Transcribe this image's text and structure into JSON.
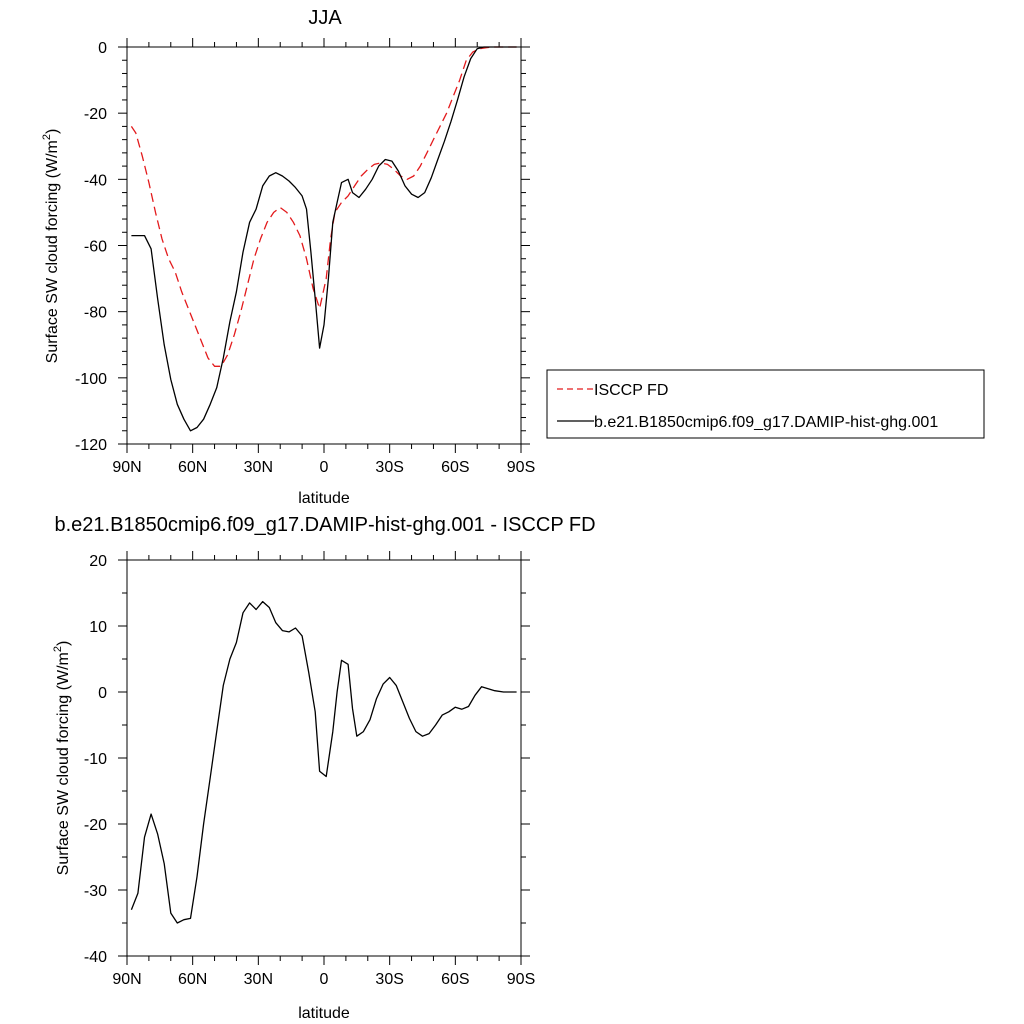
{
  "chart_data": [
    {
      "type": "line",
      "title": "JJA",
      "xlabel": "latitude",
      "ylabel": "Surface SW cloud forcing (W/m",
      "ylabel_sup": "2",
      "ylabel_close": ")",
      "xlim": [
        90,
        -90
      ],
      "ylim": [
        -120,
        0
      ],
      "x_ticks": [
        {
          "value": 90,
          "label": "90N"
        },
        {
          "value": 60,
          "label": "60N"
        },
        {
          "value": 30,
          "label": "30N"
        },
        {
          "value": 0,
          "label": "0"
        },
        {
          "value": -30,
          "label": "30S"
        },
        {
          "value": -60,
          "label": "60S"
        },
        {
          "value": -90,
          "label": "90S"
        }
      ],
      "y_ticks": [
        {
          "value": 0,
          "label": "0"
        },
        {
          "value": -20,
          "label": "-20"
        },
        {
          "value": -40,
          "label": "-40"
        },
        {
          "value": -60,
          "label": "-60"
        },
        {
          "value": -80,
          "label": "-80"
        },
        {
          "value": -100,
          "label": "-100"
        },
        {
          "value": -120,
          "label": "-120"
        }
      ],
      "series": [
        {
          "name": "ISCCP FD",
          "color": "#e31a1c",
          "dash": "dashed",
          "points": [
            [
              88,
              -24
            ],
            [
              86,
              -26
            ],
            [
              83,
              -33
            ],
            [
              80,
              -41
            ],
            [
              77,
              -50
            ],
            [
              74,
              -58
            ],
            [
              71,
              -64
            ],
            [
              68,
              -68
            ],
            [
              65,
              -74
            ],
            [
              62,
              -79
            ],
            [
              59,
              -84
            ],
            [
              56,
              -89
            ],
            [
              53,
              -94
            ],
            [
              50,
              -96.5
            ],
            [
              47,
              -96.5
            ],
            [
              44,
              -93
            ],
            [
              41,
              -87
            ],
            [
              38,
              -80
            ],
            [
              35,
              -72
            ],
            [
              32,
              -64
            ],
            [
              29,
              -58
            ],
            [
              26,
              -53
            ],
            [
              23,
              -50
            ],
            [
              20,
              -48.5
            ],
            [
              17,
              -50
            ],
            [
              14,
              -53
            ],
            [
              11,
              -57
            ],
            [
              8,
              -64
            ],
            [
              5,
              -73
            ],
            [
              2,
              -79
            ],
            [
              -1,
              -70
            ],
            [
              -3,
              -58
            ],
            [
              -5,
              -50
            ],
            [
              -8,
              -47
            ],
            [
              -11,
              -45
            ],
            [
              -14,
              -42
            ],
            [
              -17,
              -39
            ],
            [
              -20,
              -37
            ],
            [
              -23,
              -35.5
            ],
            [
              -26,
              -35
            ],
            [
              -29,
              -35.5
            ],
            [
              -32,
              -37
            ],
            [
              -35,
              -39
            ],
            [
              -38,
              -40
            ],
            [
              -41,
              -39
            ],
            [
              -44,
              -36
            ],
            [
              -47,
              -32
            ],
            [
              -50,
              -28
            ],
            [
              -53,
              -24
            ],
            [
              -56,
              -20
            ],
            [
              -59,
              -15
            ],
            [
              -62,
              -10
            ],
            [
              -65,
              -4
            ],
            [
              -68,
              -1.5
            ],
            [
              -71,
              -0.5
            ],
            [
              -74,
              -0.2
            ],
            [
              -77,
              0
            ],
            [
              -80,
              0
            ],
            [
              -85,
              0
            ],
            [
              -88,
              0
            ]
          ]
        },
        {
          "name": "b.e21.B1850cmip6.f09_g17.DAMIP-hist-ghg.001",
          "color": "#000000",
          "dash": "solid",
          "points": [
            [
              88,
              -57
            ],
            [
              85,
              -57
            ],
            [
              82,
              -57
            ],
            [
              79,
              -61
            ],
            [
              76,
              -76
            ],
            [
              73,
              -90
            ],
            [
              70,
              -100.5
            ],
            [
              67,
              -108
            ],
            [
              64,
              -112.5
            ],
            [
              61,
              -116
            ],
            [
              58,
              -115
            ],
            [
              55,
              -112.5
            ],
            [
              52,
              -108
            ],
            [
              49,
              -103
            ],
            [
              46,
              -94
            ],
            [
              43,
              -83
            ],
            [
              40,
              -74
            ],
            [
              37,
              -62
            ],
            [
              34,
              -53
            ],
            [
              31,
              -49
            ],
            [
              28,
              -42
            ],
            [
              25,
              -39
            ],
            [
              22,
              -38
            ],
            [
              19,
              -39
            ],
            [
              16,
              -40.5
            ],
            [
              13,
              -42.5
            ],
            [
              10,
              -45
            ],
            [
              8,
              -49
            ],
            [
              6,
              -62
            ],
            [
              4,
              -76
            ],
            [
              2,
              -91
            ],
            [
              0,
              -84
            ],
            [
              -2,
              -70
            ],
            [
              -4,
              -53
            ],
            [
              -6,
              -47
            ],
            [
              -8,
              -41
            ],
            [
              -11,
              -40
            ],
            [
              -13,
              -44
            ],
            [
              -16,
              -45.5
            ],
            [
              -19,
              -43
            ],
            [
              -22,
              -40
            ],
            [
              -25,
              -36
            ],
            [
              -28,
              -34
            ],
            [
              -31,
              -34.5
            ],
            [
              -34,
              -37.5
            ],
            [
              -37,
              -42
            ],
            [
              -40,
              -44.5
            ],
            [
              -43,
              -45.5
            ],
            [
              -46,
              -44
            ],
            [
              -49,
              -39.5
            ],
            [
              -52,
              -34
            ],
            [
              -55,
              -28.5
            ],
            [
              -58,
              -22.5
            ],
            [
              -61,
              -16
            ],
            [
              -64,
              -9
            ],
            [
              -67,
              -3.5
            ],
            [
              -70,
              -0.5
            ],
            [
              -73,
              0
            ],
            [
              -76,
              0
            ],
            [
              -80,
              0
            ],
            [
              -85,
              0
            ],
            [
              -88,
              0
            ]
          ]
        }
      ],
      "legend": [
        "ISCCP FD",
        "b.e21.B1850cmip6.f09_g17.DAMIP-hist-ghg.001"
      ],
      "legend_position": "right"
    },
    {
      "type": "line",
      "title": "b.e21.B1850cmip6.f09_g17.DAMIP-hist-ghg.001 - ISCCP FD",
      "xlabel": "latitude",
      "ylabel": "Surface SW cloud forcing (W/m",
      "ylabel_sup": "2",
      "ylabel_close": ")",
      "xlim": [
        90,
        -90
      ],
      "ylim": [
        -40,
        20
      ],
      "x_ticks": [
        {
          "value": 90,
          "label": "90N"
        },
        {
          "value": 60,
          "label": "60N"
        },
        {
          "value": 30,
          "label": "30N"
        },
        {
          "value": 0,
          "label": "0"
        },
        {
          "value": -30,
          "label": "30S"
        },
        {
          "value": -60,
          "label": "60S"
        },
        {
          "value": -90,
          "label": "90S"
        }
      ],
      "y_ticks": [
        {
          "value": 20,
          "label": "20"
        },
        {
          "value": 10,
          "label": "10"
        },
        {
          "value": 0,
          "label": "0"
        },
        {
          "value": -10,
          "label": "-10"
        },
        {
          "value": -20,
          "label": "-20"
        },
        {
          "value": -30,
          "label": "-30"
        },
        {
          "value": -40,
          "label": "-40"
        }
      ],
      "series": [
        {
          "color": "#000000",
          "dash": "solid",
          "points": [
            [
              88,
              -33
            ],
            [
              85,
              -30.5
            ],
            [
              82,
              -22
            ],
            [
              79,
              -18.5
            ],
            [
              76,
              -21.5
            ],
            [
              73,
              -26
            ],
            [
              70,
              -33.5
            ],
            [
              67,
              -35
            ],
            [
              64,
              -34.5
            ],
            [
              61,
              -34.3
            ],
            [
              58,
              -28
            ],
            [
              55,
              -20
            ],
            [
              52,
              -13
            ],
            [
              49,
              -6
            ],
            [
              46,
              1
            ],
            [
              43,
              5
            ],
            [
              40,
              7.5
            ],
            [
              37,
              12
            ],
            [
              34,
              13.5
            ],
            [
              31,
              12.5
            ],
            [
              28,
              13.7
            ],
            [
              25,
              12.8
            ],
            [
              22,
              10.5
            ],
            [
              19,
              9.3
            ],
            [
              16,
              9.1
            ],
            [
              13,
              9.7
            ],
            [
              10,
              8.5
            ],
            [
              7,
              3
            ],
            [
              4,
              -3
            ],
            [
              2,
              -12
            ],
            [
              -1,
              -12.8
            ],
            [
              -4,
              -6
            ],
            [
              -6,
              0
            ],
            [
              -8,
              4.8
            ],
            [
              -11,
              4.2
            ],
            [
              -13,
              -2.5
            ],
            [
              -15,
              -6.7
            ],
            [
              -18,
              -6
            ],
            [
              -21,
              -4.2
            ],
            [
              -24,
              -1
            ],
            [
              -27,
              1.2
            ],
            [
              -30,
              2.2
            ],
            [
              -33,
              1
            ],
            [
              -36,
              -1.5
            ],
            [
              -39,
              -4
            ],
            [
              -42,
              -6
            ],
            [
              -45,
              -6.7
            ],
            [
              -48,
              -6.3
            ],
            [
              -51,
              -5
            ],
            [
              -54,
              -3.5
            ],
            [
              -57,
              -3
            ],
            [
              -60,
              -2.3
            ],
            [
              -63,
              -2.6
            ],
            [
              -66,
              -2.2
            ],
            [
              -69,
              -0.5
            ],
            [
              -72,
              0.8
            ],
            [
              -75,
              0.5
            ],
            [
              -78,
              0.2
            ],
            [
              -82,
              0
            ],
            [
              -86,
              0
            ],
            [
              -88,
              0
            ]
          ]
        }
      ]
    }
  ]
}
